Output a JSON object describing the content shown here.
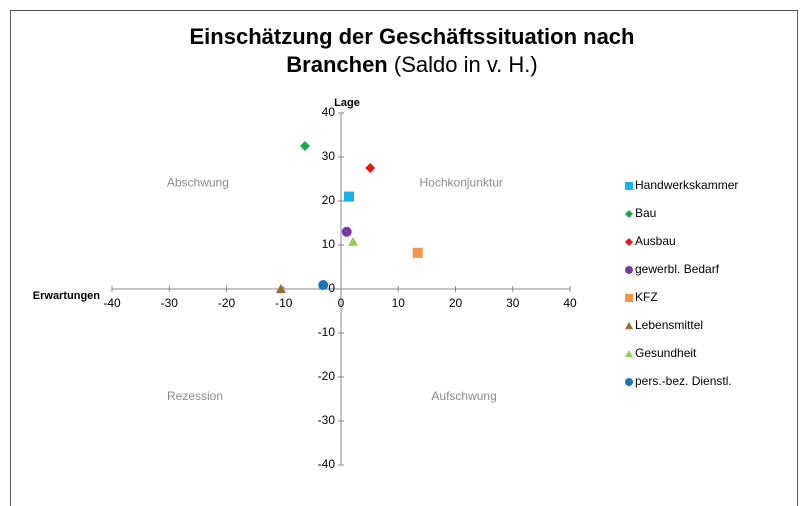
{
  "chart_data": {
    "type": "scatter",
    "title": "Einschätzung der Geschäftssituation nach",
    "title_line2": "Branchen",
    "subtitle": "(Saldo in v. H.)",
    "xlabel": "Erwartungen",
    "ylabel": "Lage",
    "xlim": [
      -40,
      40
    ],
    "xticks": [
      -40,
      -30,
      -20,
      -10,
      0,
      10,
      20,
      30,
      40
    ],
    "ylim": [
      -40,
      40
    ],
    "yticks": [
      -40,
      -30,
      -20,
      -10,
      0,
      10,
      20,
      30,
      40
    ],
    "annotations": [
      {
        "text": "Abschwung",
        "x": -25,
        "y": 24
      },
      {
        "text": "Hochkonjunktur",
        "x": 21,
        "y": 24
      },
      {
        "text": "Rezession",
        "x": -25.5,
        "y": -24.5
      },
      {
        "text": "Aufschwung",
        "x": 21.5,
        "y": -24.5
      }
    ],
    "legend": "right",
    "series": [
      {
        "name": "Handwerkskammer",
        "color": "#1ab0ea",
        "marker": "square",
        "x": [
          1.4
        ],
        "values": [
          21
        ]
      },
      {
        "name": "Bau",
        "color": "#1aaa4a",
        "marker": "diamond",
        "x": [
          -6.3
        ],
        "values": [
          32.5
        ]
      },
      {
        "name": "Ausbau",
        "color": "#e8141a",
        "marker": "diamond",
        "x": [
          5.1
        ],
        "values": [
          27.5
        ]
      },
      {
        "name": "gewerbl. Bedarf",
        "color": "#7a3aa4",
        "marker": "circle",
        "x": [
          1.0
        ],
        "values": [
          13
        ]
      },
      {
        "name": "KFZ",
        "color": "#f7964a",
        "marker": "square",
        "x": [
          13.4
        ],
        "values": [
          8.2
        ]
      },
      {
        "name": "Lebensmittel",
        "color": "#9a6a3a",
        "marker": "triangle",
        "x": [
          -10.5
        ],
        "values": [
          0
        ]
      },
      {
        "name": "Gesundheit",
        "color": "#92d050",
        "marker": "triangle",
        "x": [
          2.1
        ],
        "values": [
          10.7
        ]
      },
      {
        "name": "pers.-bez. Dienstl.",
        "color": "#1a74c0",
        "marker": "circle",
        "x": [
          -3.1
        ],
        "values": [
          0.9
        ]
      }
    ]
  }
}
